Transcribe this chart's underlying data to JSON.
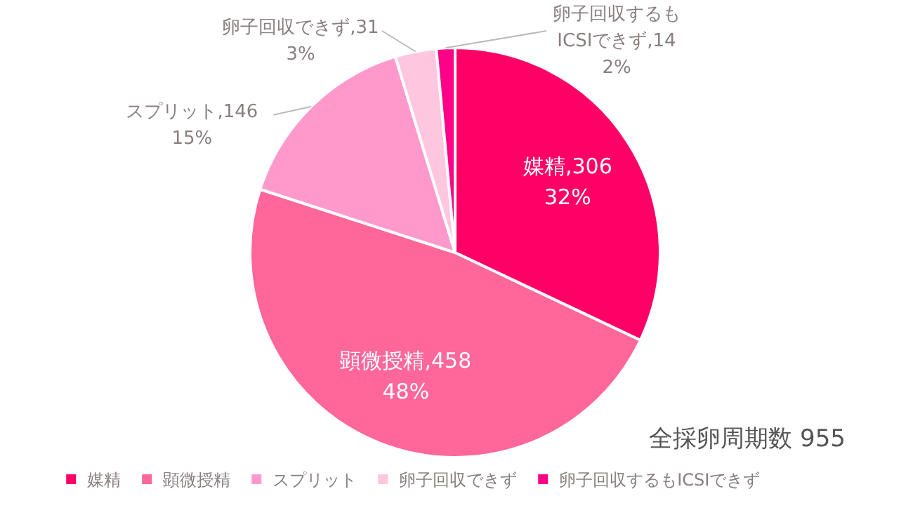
{
  "chart_data": {
    "type": "pie",
    "categories": [
      "媒精",
      "顕微授精",
      "スプリット",
      "卵子回収できず",
      "卵子回収するもICSIできず"
    ],
    "values": [
      306,
      458,
      146,
      31,
      14
    ],
    "colors": [
      "#ff0066",
      "#ff6699",
      "#ff99cc",
      "#ffc6e0",
      "#ff0088"
    ],
    "value_labels": [
      "媒精,306\n32%",
      "顕微授精,458\n48%",
      "スプリット,146\n15%",
      "卵子回収できず,31\n3%",
      "卵子回収するも\nICSIできず,14\n2%"
    ],
    "legend": "bottom",
    "annotations": [
      "全採卵周期数 955"
    ]
  }
}
